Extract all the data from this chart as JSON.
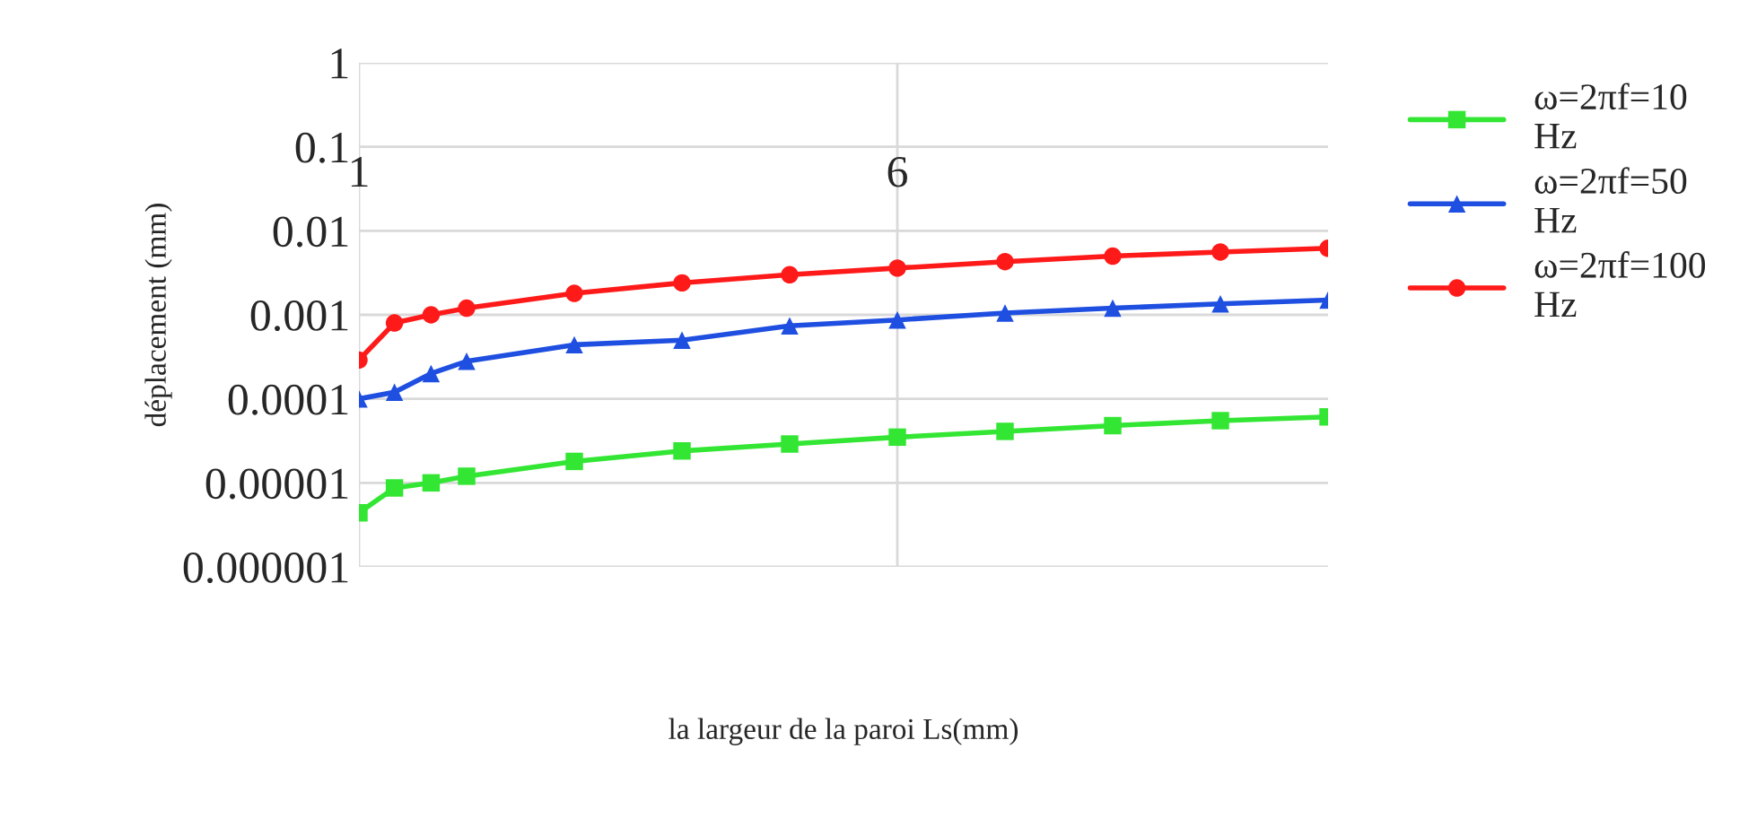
{
  "chart_data": {
    "type": "line",
    "xlabel": "la largeur de la paroi Ls(mm)",
    "ylabel": "déplacement (mm)",
    "log": "y",
    "x": [
      1,
      1.33,
      1.67,
      2,
      3,
      4,
      5,
      6,
      7,
      8,
      9,
      10
    ],
    "xlim": [
      1,
      10
    ],
    "xticks": [
      1,
      6
    ],
    "ylim": [
      1e-06,
      1
    ],
    "yticks": [
      {
        "value": 1e-06,
        "label": "0.000001"
      },
      {
        "value": 1e-05,
        "label": "0.00001"
      },
      {
        "value": 0.0001,
        "label": "0.0001"
      },
      {
        "value": 0.001,
        "label": "0.001"
      },
      {
        "value": 0.01,
        "label": "0.01"
      },
      {
        "value": 0.1,
        "label": "0.1"
      },
      {
        "value": 1,
        "label": "1"
      }
    ],
    "grid": true,
    "legend": "right",
    "line_style": "solid",
    "series": [
      {
        "name": "ω=2πf=10 Hz",
        "color": "#33e633",
        "marker": "square",
        "values": [
          4.4e-06,
          8.7e-06,
          1e-05,
          1.2e-05,
          1.8e-05,
          2.4e-05,
          2.9e-05,
          3.5e-05,
          4.1e-05,
          4.8e-05,
          5.5e-05,
          6.1e-05
        ]
      },
      {
        "name": "ω=2πf=50 Hz",
        "color": "#1f4fe0",
        "marker": "triangle",
        "values": [
          0.0001,
          0.00012,
          0.0002,
          0.00028,
          0.00044,
          0.0005,
          0.00074,
          0.00087,
          0.00105,
          0.0012,
          0.00135,
          0.0015
        ]
      },
      {
        "name": "ω=2πf=100 Hz",
        "color": "#ff1a1a",
        "marker": "circle",
        "values": [
          0.00029,
          0.0008,
          0.001,
          0.0012,
          0.0018,
          0.0024,
          0.003,
          0.0036,
          0.0043,
          0.005,
          0.0056,
          0.0062
        ]
      }
    ]
  }
}
